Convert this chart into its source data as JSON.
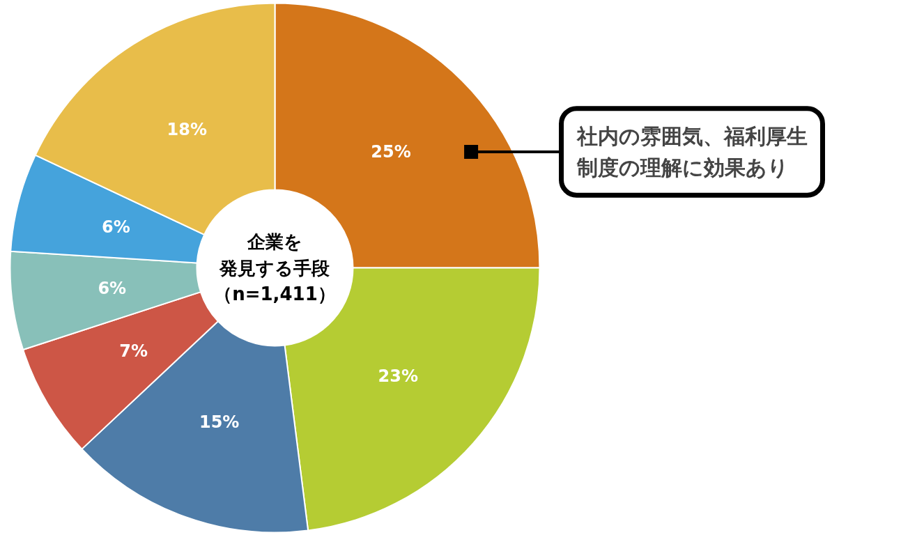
{
  "chart_data": {
    "type": "donut",
    "title": "企業を発見する手段",
    "subtitle": "（n=1,411）",
    "categories": [
      null,
      null,
      null,
      null,
      null,
      null,
      null
    ],
    "values": [
      25,
      23,
      15,
      7,
      6,
      6,
      18
    ],
    "colors": [
      "#d4761a",
      "#b5cc33",
      "#4e7ca8",
      "#cd5646",
      "#88c0b9",
      "#45a3dc",
      "#e8bd4a"
    ],
    "value_labels": [
      "25%",
      "23%",
      "15%",
      "7%",
      "6%",
      "6%",
      "18%"
    ],
    "annotations": [
      "社内の雰囲気、福利厚生制度の理解に効果あり"
    ]
  }
}
